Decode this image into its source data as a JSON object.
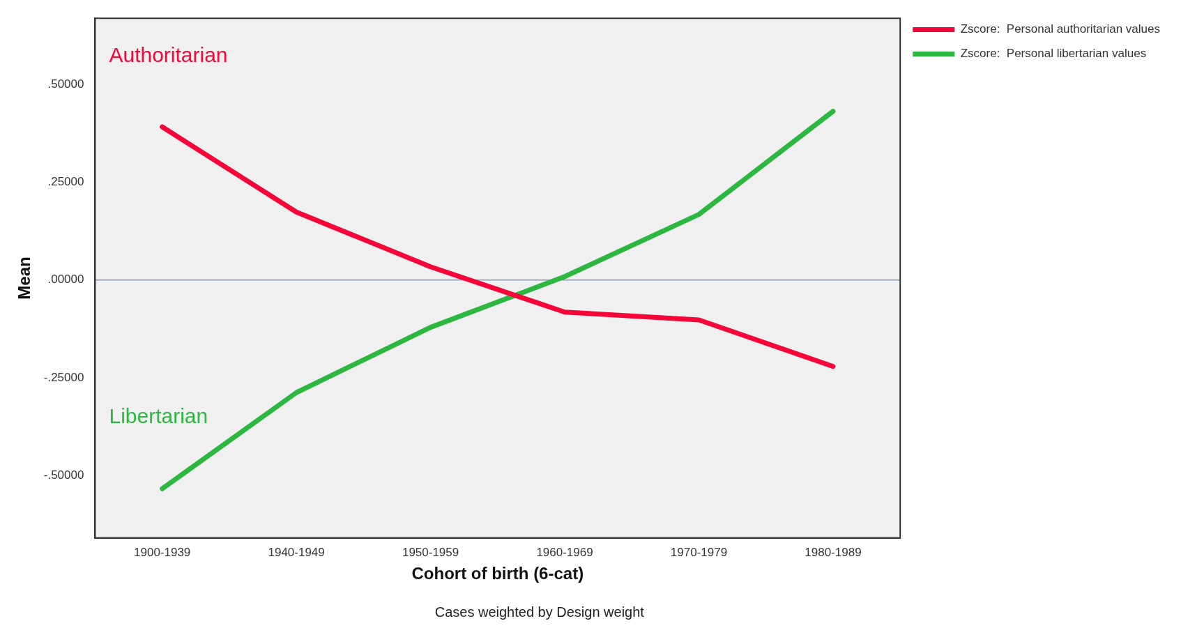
{
  "chart_data": {
    "type": "line",
    "xlabel": "Cohort of birth (6-cat)",
    "ylabel": "Mean",
    "categories": [
      "1900-1939",
      "1940-1949",
      "1950-1959",
      "1960-1969",
      "1970-1979",
      "1980-1989"
    ],
    "series": [
      {
        "name": "Zscore:  Personal authoritarian values",
        "color": "#f50538",
        "values": [
          0.392,
          0.174,
          0.034,
          -0.082,
          -0.102,
          -0.221
        ]
      },
      {
        "name": "Zscore:  Personal libertarian values",
        "color": "#2bb740",
        "values": [
          -0.534,
          -0.288,
          -0.121,
          0.009,
          0.168,
          0.432
        ]
      }
    ],
    "ylim": [
      -0.66,
      0.67
    ],
    "yticks": [
      {
        "value": -0.5,
        "label": "-.50000"
      },
      {
        "value": -0.25,
        "label": "-.25000"
      },
      {
        "value": 0,
        "label": ".00000"
      },
      {
        "value": 0.25,
        "label": ".25000"
      },
      {
        "value": 0.5,
        "label": ".50000"
      }
    ],
    "ref_lines": [
      {
        "axis": "y",
        "value": 0,
        "color": "#4472c4"
      }
    ],
    "annotations": [
      "Authoritarian",
      "Libertarian",
      "Cases weighted by Design weight"
    ],
    "legend": "top right",
    "grid": false,
    "marker": "none",
    "line_style": "solid"
  }
}
